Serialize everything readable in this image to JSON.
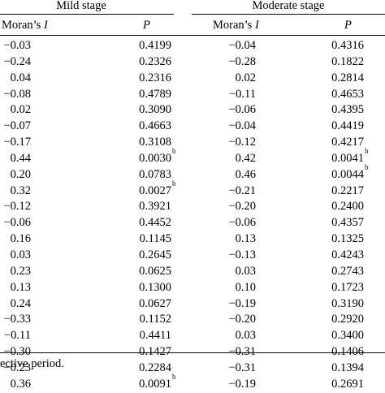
{
  "groups": [
    {
      "label": "Mild stage"
    },
    {
      "label": "Moderate stage"
    }
  ],
  "columns": [
    "Moran’s",
    "I",
    "P",
    "Moran’s",
    "I",
    "P"
  ],
  "rows": [
    {
      "mild_i": "−0.03",
      "mild_p": "0.4199",
      "mild_mark": "",
      "mod_i": "−0.04",
      "mod_p": "0.4316",
      "mod_mark": ""
    },
    {
      "mild_i": "−0.24",
      "mild_p": "0.2326",
      "mild_mark": "",
      "mod_i": "−0.28",
      "mod_p": "0.1822",
      "mod_mark": ""
    },
    {
      "mild_i": "0.04",
      "mild_p": "0.2316",
      "mild_mark": "",
      "mod_i": "0.02",
      "mod_p": "0.2814",
      "mod_mark": ""
    },
    {
      "mild_i": "−0.08",
      "mild_p": "0.4789",
      "mild_mark": "",
      "mod_i": "−0.11",
      "mod_p": "0.4653",
      "mod_mark": ""
    },
    {
      "mild_i": "0.02",
      "mild_p": "0.3090",
      "mild_mark": "",
      "mod_i": "−0.06",
      "mod_p": "0.4395",
      "mod_mark": ""
    },
    {
      "mild_i": "−0.07",
      "mild_p": "0.4663",
      "mild_mark": "",
      "mod_i": "−0.04",
      "mod_p": "0.4419",
      "mod_mark": ""
    },
    {
      "mild_i": "−0.17",
      "mild_p": "0.3108",
      "mild_mark": "",
      "mod_i": "−0.12",
      "mod_p": "0.4217",
      "mod_mark": ""
    },
    {
      "mild_i": "0.44",
      "mild_p": "0.0030",
      "mild_mark": "b",
      "mod_i": "0.42",
      "mod_p": "0.0041",
      "mod_mark": "b"
    },
    {
      "mild_i": "0.20",
      "mild_p": "0.0783",
      "mild_mark": "",
      "mod_i": "0.46",
      "mod_p": "0.0044",
      "mod_mark": "b"
    },
    {
      "mild_i": "0.32",
      "mild_p": "0.0027",
      "mild_mark": "b",
      "mod_i": "−0.21",
      "mod_p": "0.2217",
      "mod_mark": ""
    },
    {
      "mild_i": "−0.12",
      "mild_p": "0.3921",
      "mild_mark": "",
      "mod_i": "−0.20",
      "mod_p": "0.2400",
      "mod_mark": ""
    },
    {
      "mild_i": "−0.06",
      "mild_p": "0.4452",
      "mild_mark": "",
      "mod_i": "−0.06",
      "mod_p": "0.4357",
      "mod_mark": ""
    },
    {
      "mild_i": "0.16",
      "mild_p": "0.1145",
      "mild_mark": "",
      "mod_i": "0.13",
      "mod_p": "0.1325",
      "mod_mark": ""
    },
    {
      "mild_i": "0.03",
      "mild_p": "0.2645",
      "mild_mark": "",
      "mod_i": "−0.13",
      "mod_p": "0.4243",
      "mod_mark": ""
    },
    {
      "mild_i": "0.23",
      "mild_p": "0.0625",
      "mild_mark": "",
      "mod_i": "0.03",
      "mod_p": "0.2743",
      "mod_mark": ""
    },
    {
      "mild_i": "0.13",
      "mild_p": "0.1300",
      "mild_mark": "",
      "mod_i": "0.10",
      "mod_p": "0.1723",
      "mod_mark": ""
    },
    {
      "mild_i": "0.24",
      "mild_p": "0.0627",
      "mild_mark": "",
      "mod_i": "−0.19",
      "mod_p": "0.3190",
      "mod_mark": ""
    },
    {
      "mild_i": "−0.33",
      "mild_p": "0.1152",
      "mild_mark": "",
      "mod_i": "−0.20",
      "mod_p": "0.2920",
      "mod_mark": ""
    },
    {
      "mild_i": "−0.11",
      "mild_p": "0.4411",
      "mild_mark": "",
      "mod_i": "0.03",
      "mod_p": "0.3400",
      "mod_mark": ""
    },
    {
      "mild_i": "−0.30",
      "mild_p": "0.1427",
      "mild_mark": "",
      "mod_i": "−0.31",
      "mod_p": "0.1406",
      "mod_mark": ""
    },
    {
      "mild_i": "−0.23",
      "mild_p": "0.2284",
      "mild_mark": "",
      "mod_i": "−0.31",
      "mod_p": "0.1394",
      "mod_mark": ""
    },
    {
      "mild_i": "0.36",
      "mild_p": "0.0091",
      "mild_mark": "b",
      "mod_i": "−0.19",
      "mod_p": "0.2691",
      "mod_mark": ""
    }
  ],
  "footnote": "ective period."
}
